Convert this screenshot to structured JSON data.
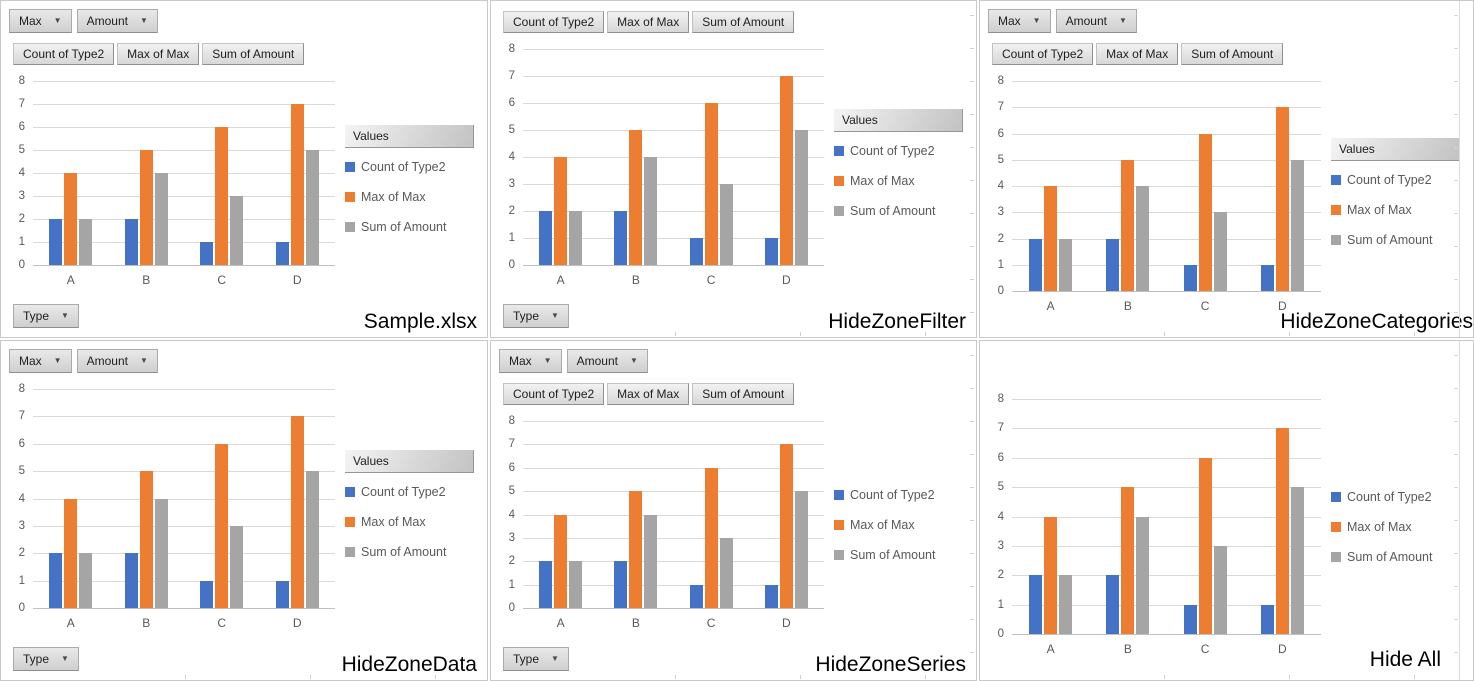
{
  "ui": {
    "filter_buttons": [
      {
        "label": "Max"
      },
      {
        "label": "Amount"
      }
    ],
    "data_field_buttons": [
      {
        "label": "Count of Type2"
      },
      {
        "label": "Max of Max"
      },
      {
        "label": "Sum of Amount"
      }
    ],
    "series_button_label": "Values",
    "category_button_label": "Type"
  },
  "chart_data": {
    "type": "bar",
    "title": "",
    "xlabel": "",
    "ylabel": "",
    "categories": [
      "A",
      "B",
      "C",
      "D"
    ],
    "series": [
      {
        "name": "Count of Type2",
        "color": "#4472C4",
        "values": [
          2,
          2,
          1,
          1
        ]
      },
      {
        "name": "Max of Max",
        "color": "#ED7D31",
        "values": [
          4,
          5,
          6,
          7
        ]
      },
      {
        "name": "Sum of Amount",
        "color": "#A5A5A5",
        "values": [
          2,
          4,
          3,
          5
        ]
      }
    ],
    "ylim": [
      0,
      8
    ],
    "yticks": [
      0,
      1,
      2,
      3,
      4,
      5,
      6,
      7,
      8
    ],
    "grid": true,
    "legend_position": "right"
  },
  "panels": [
    {
      "label": "Sample.xlsx",
      "show_filter_buttons": true,
      "show_data_buttons": true,
      "show_series_button": true,
      "show_category_button": true
    },
    {
      "label": "HideZoneFilter",
      "show_filter_buttons": false,
      "show_data_buttons": true,
      "show_series_button": true,
      "show_category_button": true
    },
    {
      "label": "HideZoneCategories",
      "show_filter_buttons": true,
      "show_data_buttons": true,
      "show_series_button": true,
      "show_category_button": false
    },
    {
      "label": "HideZoneData",
      "show_filter_buttons": true,
      "show_data_buttons": false,
      "show_series_button": true,
      "show_category_button": true
    },
    {
      "label": "HideZoneSeries",
      "show_filter_buttons": true,
      "show_data_buttons": true,
      "show_series_button": false,
      "show_category_button": true
    },
    {
      "label": "Hide All",
      "show_filter_buttons": false,
      "show_data_buttons": false,
      "show_series_button": false,
      "show_category_button": false
    }
  ],
  "colors": {
    "series_blue": "#4472C4",
    "series_orange": "#ED7D31",
    "series_gray": "#A5A5A5",
    "gridline": "#D9D9D9",
    "baseline": "#BFBFBF",
    "axis_text": "#595959",
    "panel_border": "#C9C9C9"
  }
}
